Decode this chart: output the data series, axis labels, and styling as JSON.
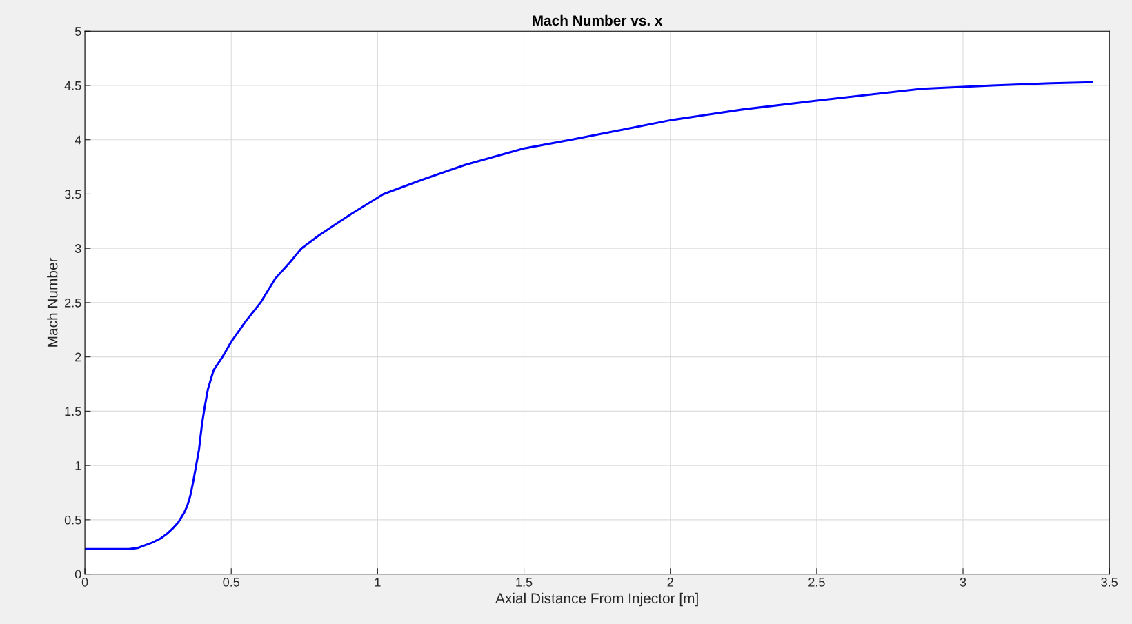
{
  "chart_data": {
    "type": "line",
    "title": "Mach Number vs. x",
    "xlabel": "Axial Distance From Injector [m]",
    "ylabel": "Mach Number",
    "xlim": [
      0,
      3.5
    ],
    "xticks": [
      0,
      0.5,
      1,
      1.5,
      2,
      2.5,
      3,
      3.5
    ],
    "ylim": [
      0,
      5
    ],
    "yticks": [
      0,
      0.5,
      1,
      1.5,
      2,
      2.5,
      3,
      3.5,
      4,
      4.5,
      5
    ],
    "grid": true,
    "series": [
      {
        "color": "#0000ff",
        "x": [
          0,
          0.05,
          0.1,
          0.15,
          0.18,
          0.2,
          0.23,
          0.26,
          0.28,
          0.3,
          0.32,
          0.34,
          0.35,
          0.36,
          0.37,
          0.38,
          0.39,
          0.4,
          0.41,
          0.42,
          0.44,
          0.47,
          0.5,
          0.55,
          0.6,
          0.65,
          0.7,
          0.74,
          0.8,
          0.9,
          1.02,
          1.15,
          1.3,
          1.5,
          1.66,
          1.85,
          2.0,
          2.25,
          2.5,
          2.86,
          3.1,
          3.3,
          3.44
        ],
        "values": [
          0.23,
          0.23,
          0.23,
          0.23,
          0.24,
          0.26,
          0.29,
          0.33,
          0.37,
          0.42,
          0.48,
          0.57,
          0.63,
          0.72,
          0.85,
          1.0,
          1.15,
          1.38,
          1.55,
          1.7,
          1.88,
          2.0,
          2.14,
          2.33,
          2.5,
          2.72,
          2.87,
          3.0,
          3.12,
          3.3,
          3.5,
          3.63,
          3.77,
          3.92,
          4.0,
          4.1,
          4.18,
          4.28,
          4.36,
          4.47,
          4.5,
          4.52,
          4.53
        ]
      }
    ]
  }
}
